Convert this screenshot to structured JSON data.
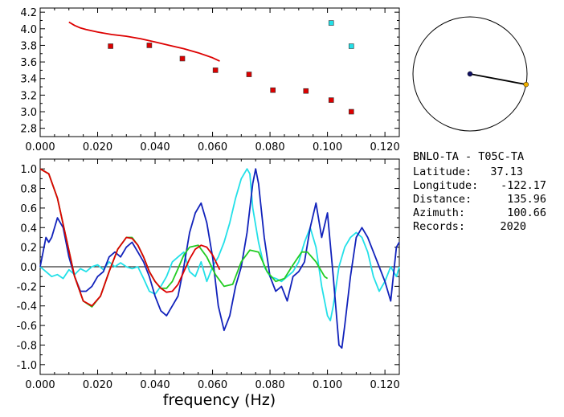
{
  "info": {
    "station_pair": "BNLO-TA - T05C-TA",
    "latitude_label": "Latitude:",
    "latitude_value": "37.13",
    "longitude_label": "Longitude:",
    "longitude_value": "-122.17",
    "distance_label": "Distance:",
    "distance_value": "135.96",
    "azimuth_label": "Azimuth:",
    "azimuth_value": "100.66",
    "records_label": "Records:",
    "records_value": "2020"
  },
  "colors": {
    "red": "#dd0000",
    "cyan": "#22e0e8",
    "blue": "#1122bb",
    "green": "#22cc22",
    "navy": "#111166",
    "gold": "#f0b000"
  },
  "chart_data": [
    {
      "type": "scatter",
      "xlim": [
        0.0,
        0.125
      ],
      "ylim": [
        2.7,
        4.25
      ],
      "xticks": [
        "0.000",
        "0.020",
        "0.040",
        "0.060",
        "0.080",
        "0.100",
        "0.120"
      ],
      "yticks": [
        "2.8",
        "3.0",
        "3.2",
        "3.4",
        "3.6",
        "3.8",
        "4.0",
        "4.2"
      ],
      "series": [
        {
          "kind": "line",
          "color": "red",
          "x": [
            0.01,
            0.012,
            0.014,
            0.016,
            0.02,
            0.025,
            0.03,
            0.035,
            0.04,
            0.045,
            0.05,
            0.055,
            0.06,
            0.0625
          ],
          "y": [
            4.08,
            4.04,
            4.01,
            3.99,
            3.96,
            3.93,
            3.91,
            3.88,
            3.84,
            3.8,
            3.76,
            3.71,
            3.65,
            3.61
          ]
        },
        {
          "kind": "markers",
          "color": "red",
          "x": [
            0.0245,
            0.038,
            0.0495,
            0.061,
            0.0727,
            0.081,
            0.0925,
            0.1013,
            0.1083
          ],
          "y": [
            3.79,
            3.8,
            3.64,
            3.5,
            3.45,
            3.26,
            3.25,
            3.14,
            3.0
          ]
        },
        {
          "kind": "markers",
          "color": "cyan",
          "x": [
            0.1013,
            0.1083
          ],
          "y": [
            4.07,
            3.79
          ]
        }
      ]
    },
    {
      "type": "line",
      "xlabel": "frequency (Hz)",
      "xlim": [
        0.0,
        0.125
      ],
      "ylim": [
        -1.1,
        1.1
      ],
      "xticks": [
        "0.000",
        "0.020",
        "0.040",
        "0.060",
        "0.080",
        "0.100",
        "0.120"
      ],
      "yticks": [
        "1.0",
        "0.8",
        "0.6",
        "0.4",
        "0.2",
        "0.0",
        "-0.2",
        "-0.4",
        "-0.6",
        "-0.8",
        "-1.0"
      ],
      "series": [
        {
          "color": "cyan",
          "x": [
            0,
            0.002,
            0.004,
            0.006,
            0.008,
            0.01,
            0.012,
            0.014,
            0.016,
            0.018,
            0.02,
            0.022,
            0.024,
            0.026,
            0.028,
            0.03,
            0.032,
            0.034,
            0.036,
            0.038,
            0.04,
            0.042,
            0.044,
            0.046,
            0.048,
            0.05,
            0.052,
            0.054,
            0.056,
            0.058,
            0.06,
            0.062,
            0.064,
            0.066,
            0.068,
            0.07,
            0.072,
            0.073,
            0.074,
            0.076,
            0.078,
            0.08,
            0.082,
            0.084,
            0.086,
            0.088,
            0.09,
            0.092,
            0.094,
            0.096,
            0.098,
            0.1,
            0.101,
            0.102,
            0.104,
            0.106,
            0.108,
            0.11,
            0.112,
            0.114,
            0.116,
            0.118,
            0.12,
            0.122,
            0.124,
            0.125
          ],
          "y": [
            0.0,
            -0.05,
            -0.1,
            -0.08,
            -0.12,
            -0.03,
            -0.08,
            -0.02,
            -0.05,
            0.0,
            0.02,
            -0.03,
            0.05,
            0.0,
            0.04,
            0.0,
            -0.02,
            0.0,
            -0.12,
            -0.25,
            -0.28,
            -0.2,
            -0.1,
            0.05,
            0.1,
            0.15,
            -0.05,
            -0.1,
            0.05,
            -0.15,
            0.0,
            0.1,
            0.25,
            0.45,
            0.7,
            0.9,
            1.0,
            0.95,
            0.6,
            0.25,
            0.0,
            -0.1,
            -0.12,
            -0.15,
            -0.1,
            -0.05,
            0.05,
            0.25,
            0.4,
            0.2,
            -0.2,
            -0.5,
            -0.55,
            -0.4,
            0.0,
            0.2,
            0.3,
            0.35,
            0.3,
            0.15,
            -0.1,
            -0.25,
            -0.15,
            0.0,
            -0.1,
            0.0
          ]
        },
        {
          "color": "blue",
          "x": [
            0,
            0.001,
            0.002,
            0.003,
            0.004,
            0.006,
            0.008,
            0.01,
            0.012,
            0.014,
            0.016,
            0.018,
            0.02,
            0.022,
            0.024,
            0.026,
            0.028,
            0.03,
            0.032,
            0.034,
            0.036,
            0.038,
            0.04,
            0.042,
            0.044,
            0.046,
            0.048,
            0.05,
            0.052,
            0.054,
            0.056,
            0.058,
            0.06,
            0.062,
            0.064,
            0.066,
            0.068,
            0.07,
            0.072,
            0.074,
            0.075,
            0.076,
            0.078,
            0.08,
            0.082,
            0.084,
            0.086,
            0.088,
            0.09,
            0.092,
            0.094,
            0.096,
            0.098,
            0.1,
            0.102,
            0.104,
            0.105,
            0.106,
            0.108,
            0.11,
            0.112,
            0.114,
            0.116,
            0.118,
            0.12,
            0.122,
            0.124,
            0.125
          ],
          "y": [
            0.0,
            0.15,
            0.3,
            0.25,
            0.3,
            0.5,
            0.4,
            0.1,
            -0.1,
            -0.25,
            -0.25,
            -0.2,
            -0.1,
            -0.05,
            0.1,
            0.15,
            0.1,
            0.2,
            0.25,
            0.15,
            0.05,
            -0.1,
            -0.3,
            -0.45,
            -0.5,
            -0.4,
            -0.3,
            0.0,
            0.35,
            0.55,
            0.65,
            0.45,
            0.1,
            -0.4,
            -0.65,
            -0.5,
            -0.2,
            0.0,
            0.35,
            0.85,
            1.0,
            0.85,
            0.3,
            -0.1,
            -0.25,
            -0.2,
            -0.35,
            -0.1,
            -0.05,
            0.05,
            0.4,
            0.65,
            0.3,
            0.55,
            -0.1,
            -0.8,
            -0.83,
            -0.6,
            -0.1,
            0.3,
            0.4,
            0.3,
            0.15,
            0.0,
            -0.15,
            -0.35,
            0.2,
            0.25
          ]
        },
        {
          "color": "green",
          "x": [
            0,
            0.003,
            0.006,
            0.009,
            0.012,
            0.015,
            0.018,
            0.021,
            0.024,
            0.027,
            0.03,
            0.032,
            0.034,
            0.036,
            0.038,
            0.04,
            0.042,
            0.044,
            0.046,
            0.048,
            0.05,
            0.052,
            0.055,
            0.058,
            0.061,
            0.064,
            0.067,
            0.07,
            0.073,
            0.076,
            0.079,
            0.082,
            0.085,
            0.088,
            0.091,
            0.093,
            0.096,
            0.099,
            0.1
          ],
          "y": [
            1.0,
            0.95,
            0.7,
            0.3,
            -0.1,
            -0.35,
            -0.41,
            -0.3,
            -0.05,
            0.18,
            0.3,
            0.3,
            0.22,
            0.1,
            -0.05,
            -0.15,
            -0.22,
            -0.22,
            -0.15,
            -0.02,
            0.12,
            0.2,
            0.22,
            0.1,
            -0.08,
            -0.2,
            -0.18,
            0.05,
            0.17,
            0.15,
            -0.05,
            -0.15,
            -0.12,
            0.02,
            0.15,
            0.15,
            0.05,
            -0.1,
            -0.12
          ]
        },
        {
          "color": "red",
          "x": [
            0,
            0.003,
            0.006,
            0.009,
            0.012,
            0.015,
            0.018,
            0.021,
            0.024,
            0.027,
            0.03,
            0.032,
            0.034,
            0.036,
            0.038,
            0.04,
            0.042,
            0.044,
            0.046,
            0.048,
            0.05,
            0.052,
            0.054,
            0.056,
            0.058,
            0.06,
            0.062,
            0.0625
          ],
          "y": [
            1.0,
            0.95,
            0.7,
            0.3,
            -0.1,
            -0.35,
            -0.4,
            -0.3,
            -0.05,
            0.18,
            0.3,
            0.29,
            0.22,
            0.1,
            -0.05,
            -0.15,
            -0.22,
            -0.26,
            -0.25,
            -0.18,
            -0.05,
            0.08,
            0.18,
            0.22,
            0.2,
            0.12,
            0.0,
            -0.03
          ]
        }
      ]
    }
  ],
  "map": {
    "azimuth_deg": 100.66,
    "center_color": "navy",
    "end_color": "gold"
  }
}
